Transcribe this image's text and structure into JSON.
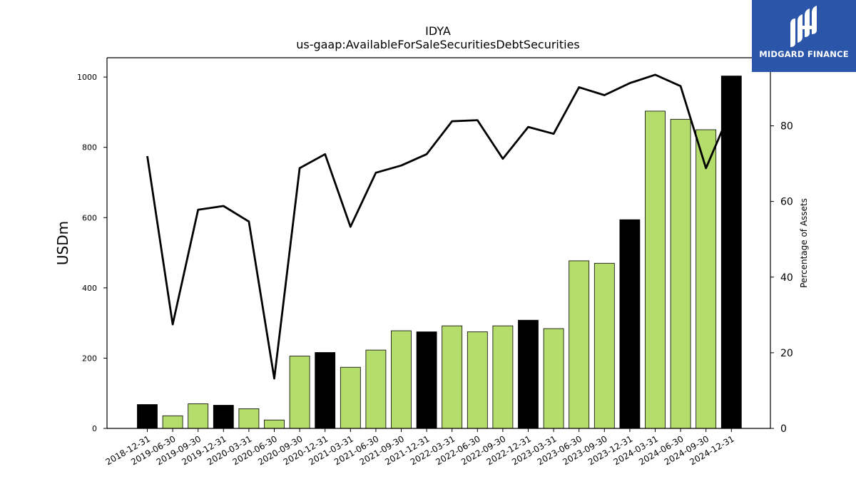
{
  "brand": {
    "name": "MIDGARD FINANCE",
    "bg_color": "#2a55a8",
    "mark_icon": "midgard-logo-icon"
  },
  "chart_data": {
    "type": "bar",
    "title": "IDYA",
    "subtitle": "us-gaap:AvailableForSaleSecuritiesDebtSecurities",
    "ylabel": "USDm",
    "y2label": "Percentage of Assets",
    "ylim": [
      0,
      1055
    ],
    "y2lim": [
      0,
      98
    ],
    "yticks": [
      0,
      200,
      400,
      600,
      800,
      1000
    ],
    "y2ticks": [
      0,
      20,
      40,
      60,
      80
    ],
    "grid": false,
    "legend": "none",
    "colors": {
      "annual_bar": "#000000",
      "quarter_bar": "#b5dd6b",
      "line": "#000000"
    },
    "categories": [
      "2018-12-31",
      "2019-06-30",
      "2019-09-30",
      "2019-12-31",
      "2020-03-31",
      "2020-06-30",
      "2020-09-30",
      "2020-12-31",
      "2021-03-31",
      "2021-06-30",
      "2021-09-30",
      "2021-12-31",
      "2022-03-31",
      "2022-06-30",
      "2022-09-30",
      "2022-12-31",
      "2023-03-31",
      "2023-06-30",
      "2023-09-30",
      "2023-12-31",
      "2024-03-31",
      "2024-06-30",
      "2024-09-30",
      "2024-12-31"
    ],
    "series": [
      {
        "kind": "bar",
        "axis": "left",
        "values": [
          68,
          36,
          70,
          66,
          56,
          24,
          206,
          216,
          174,
          223,
          278,
          275,
          292,
          275,
          292,
          308,
          284,
          477,
          470,
          594,
          903,
          880,
          850,
          1003
        ],
        "fiscal_year_end": [
          true,
          false,
          false,
          true,
          false,
          false,
          false,
          true,
          false,
          false,
          false,
          true,
          false,
          false,
          false,
          true,
          false,
          false,
          false,
          true,
          false,
          false,
          false,
          true
        ]
      },
      {
        "kind": "line",
        "axis": "right",
        "values": [
          72,
          27.5,
          57.8,
          58.8,
          54.7,
          13.2,
          68.8,
          72.5,
          53.3,
          67.6,
          69.5,
          72.5,
          81.2,
          81.5,
          71.3,
          79.7,
          77.9,
          90.2,
          88.1,
          91.3,
          93.5,
          90.5,
          68.8,
          84.5
        ]
      }
    ]
  }
}
